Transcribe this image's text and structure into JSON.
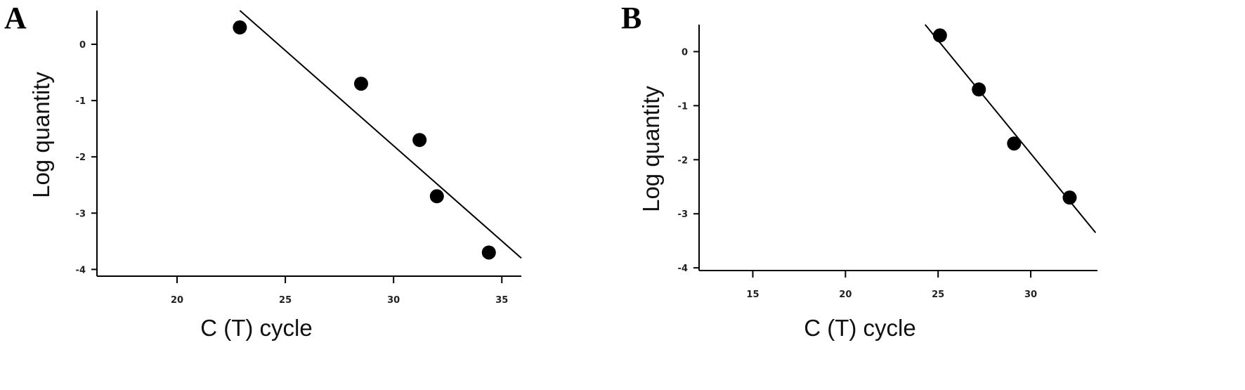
{
  "chart_data": [
    {
      "type": "scatter",
      "panel_label": "A",
      "x_label": "C (T) cycle",
      "y_label": "Log quantity",
      "x": [
        22.9,
        28.5,
        31.2,
        32.0,
        34.4
      ],
      "y": [
        0.3,
        -0.7,
        -1.7,
        -2.7,
        -3.7
      ],
      "color": "#000000",
      "trendline": {
        "x": [
          22.9,
          35.9
        ],
        "y": [
          0.6,
          -3.8
        ]
      },
      "xlim": [
        16.3,
        35.9
      ],
      "ylim": [
        -4.12,
        0.6
      ],
      "xticks": [
        20,
        25,
        30,
        35
      ],
      "yticks": [
        0,
        -1,
        -2,
        -3,
        -4
      ]
    },
    {
      "type": "scatter",
      "panel_label": "B",
      "x_label": "C (T) cycle",
      "y_label": "Log quantity",
      "x": [
        25.1,
        27.2,
        29.1,
        32.1
      ],
      "y": [
        0.3,
        -0.7,
        -1.7,
        -2.7
      ],
      "color": "#000000",
      "trendline": {
        "x": [
          24.3,
          33.5
        ],
        "y": [
          0.5,
          -3.35
        ]
      },
      "xlim": [
        12.1,
        33.6
      ],
      "ylim": [
        -4.05,
        0.5
      ],
      "xticks": [
        15,
        20,
        25,
        30
      ],
      "yticks": [
        0,
        -1,
        -2,
        -3,
        -4
      ]
    }
  ]
}
